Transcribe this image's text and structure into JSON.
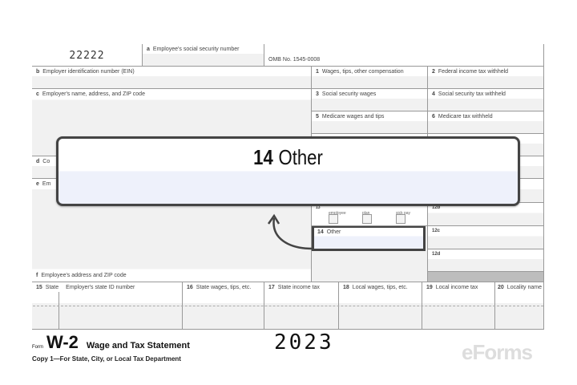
{
  "form": {
    "control_number": "22222",
    "omb": "OMB No. 1545-0008",
    "boxes": {
      "a": {
        "code": "a",
        "label": "Employee's social security number"
      },
      "b": {
        "code": "b",
        "label": "Employer identification number (EIN)"
      },
      "c": {
        "code": "c",
        "label": "Employer's name, address, and ZIP code"
      },
      "d": {
        "code": "d",
        "label": "Co"
      },
      "e": {
        "code": "e",
        "label": "Em"
      },
      "f": {
        "code": "f",
        "label": "Employee's address and ZIP code"
      },
      "b1": {
        "code": "1",
        "label": "Wages, tips, other compensation"
      },
      "b2": {
        "code": "2",
        "label": "Federal income tax withheld"
      },
      "b3": {
        "code": "3",
        "label": "Social security wages"
      },
      "b4": {
        "code": "4",
        "label": "Social security tax withheld"
      },
      "b5": {
        "code": "5",
        "label": "Medicare wages and tips"
      },
      "b6": {
        "code": "6",
        "label": "Medicare tax withheld"
      },
      "b13": {
        "code": "13",
        "opts": [
          "employee",
          "plan",
          "sick pay"
        ]
      },
      "b14": {
        "code": "14",
        "label": "Other"
      },
      "b12b": {
        "code": "12b"
      },
      "b12c": {
        "code": "12c"
      },
      "b12d": {
        "code": "12d"
      },
      "b15": {
        "code": "15",
        "label": "State",
        "label2": "Employer's state ID number"
      },
      "b16": {
        "code": "16",
        "label": "State wages, tips, etc."
      },
      "b17": {
        "code": "17",
        "label": "State income tax"
      },
      "b18": {
        "code": "18",
        "label": "Local wages, tips, etc."
      },
      "b19": {
        "code": "19",
        "label": "Local income tax"
      },
      "b20": {
        "code": "20",
        "label": "Locality name"
      }
    }
  },
  "footer": {
    "form_word": "Form",
    "form_name": "W-2",
    "title": "Wage and Tax Statement",
    "year": "2023",
    "copy": "Copy 1—For State, City, or Local Tax Department"
  },
  "callout": {
    "number": "14",
    "label": "Other",
    "accent": "#eef1fb"
  },
  "logo": "eForms"
}
